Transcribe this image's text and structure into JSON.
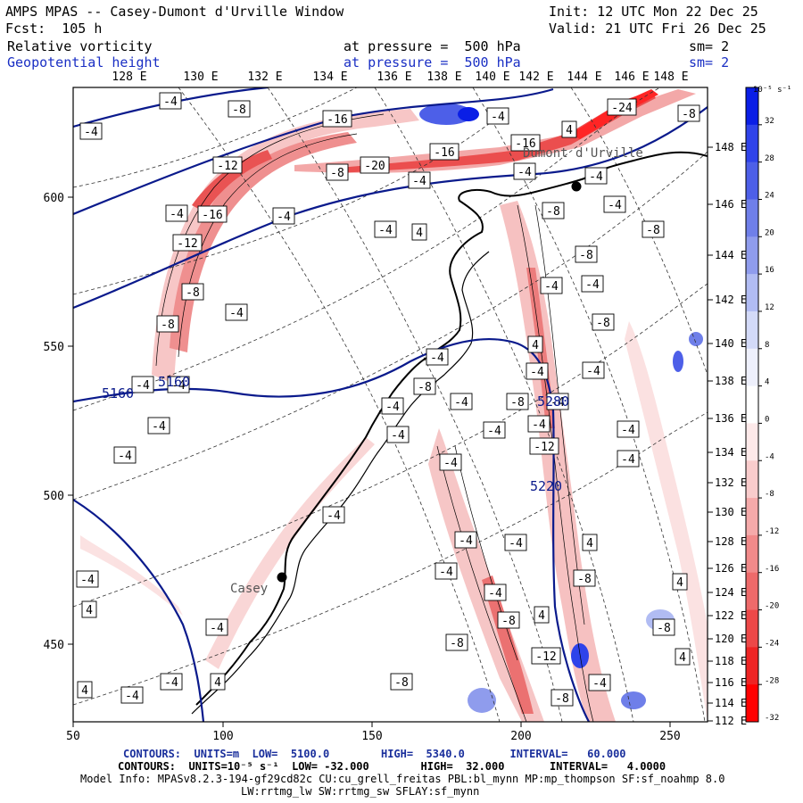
{
  "header": {
    "title": "AMPS MPAS -- Casey-Dumont d'Urville Window",
    "init": "Init: 12 UTC Mon 22 Dec 25",
    "fcst": "Fcst:  105 h",
    "valid": "Valid: 21 UTC Fri 26 Dec 25",
    "field1_name": "Relative vorticity",
    "field1_level": "at pressure =  500 hPa",
    "field1_sm": "sm= 2",
    "field2_name": "Geopotential height",
    "field2_level": "at pressure =  500 hPa",
    "field2_sm": "sm= 2"
  },
  "top_lon_labels": [
    "128 E",
    "130 E",
    "132 E",
    "134 E",
    "136 E",
    "138 E",
    "140 E",
    "142 E",
    "144 E",
    "146 E",
    "148 E"
  ],
  "right_lon_labels": [
    "148 E",
    "146 E",
    "144 E",
    "142 E",
    "140 E",
    "138 E",
    "136 E",
    "134 E",
    "132 E",
    "130 E",
    "128 E",
    "126 E",
    "124 E",
    "122 E",
    "120 E",
    "118 E",
    "116 E",
    "114 E",
    "112 E"
  ],
  "x_ticks": [
    "50",
    "100",
    "150",
    "200",
    "250"
  ],
  "y_ticks": [
    "600",
    "550",
    "500",
    "450"
  ],
  "colorbar": {
    "unit": "10⁻⁵ s⁻¹",
    "labels": [
      "32",
      "28",
      "24",
      "20",
      "16",
      "12",
      "8",
      "4",
      "0",
      "-4",
      "-8",
      "-12",
      "-16",
      "-20",
      "-24",
      "-28",
      "-32"
    ],
    "colors": [
      "#0a1ee6",
      "#2f43ea",
      "#4d5fe8",
      "#6f7fe9",
      "#8f9ced",
      "#b1bcf3",
      "#d3daf8",
      "#eef0fc",
      "#ffffff",
      "#fde9e9",
      "#f9cccc",
      "#f5aaaa",
      "#f18a8a",
      "#ee6a6a",
      "#ed4848",
      "#ee2424",
      "#ff0000"
    ]
  },
  "stations": [
    {
      "name": "Dumont d'Urville"
    },
    {
      "name": "Casey"
    }
  ],
  "height_contour_labels": [
    "5160",
    "5160",
    "5220",
    "5280"
  ],
  "vorticity_labels": [
    "-4",
    "-8",
    "-12",
    "-16",
    "-20",
    "-24",
    "4"
  ],
  "footer": {
    "line1": "CONTOURS:  UNITS=m  LOW=  5100.0        HIGH=  5340.0       INTERVAL=   60.000",
    "line2": "CONTOURS:  UNITS=10⁻⁵ s⁻¹  LOW= -32.000        HIGH=  32.000       INTERVAL=   4.0000",
    "line3": "Model Info: MPASv8.2.3-194-gf29cd82c CU:cu_grell_freitas PBL:bl_mynn MP:mp_thompson SF:sf_noahmp 8.0",
    "line4": "LW:rrtmg_lw SW:rrtmg_sw SFLAY:sf_mynn"
  }
}
